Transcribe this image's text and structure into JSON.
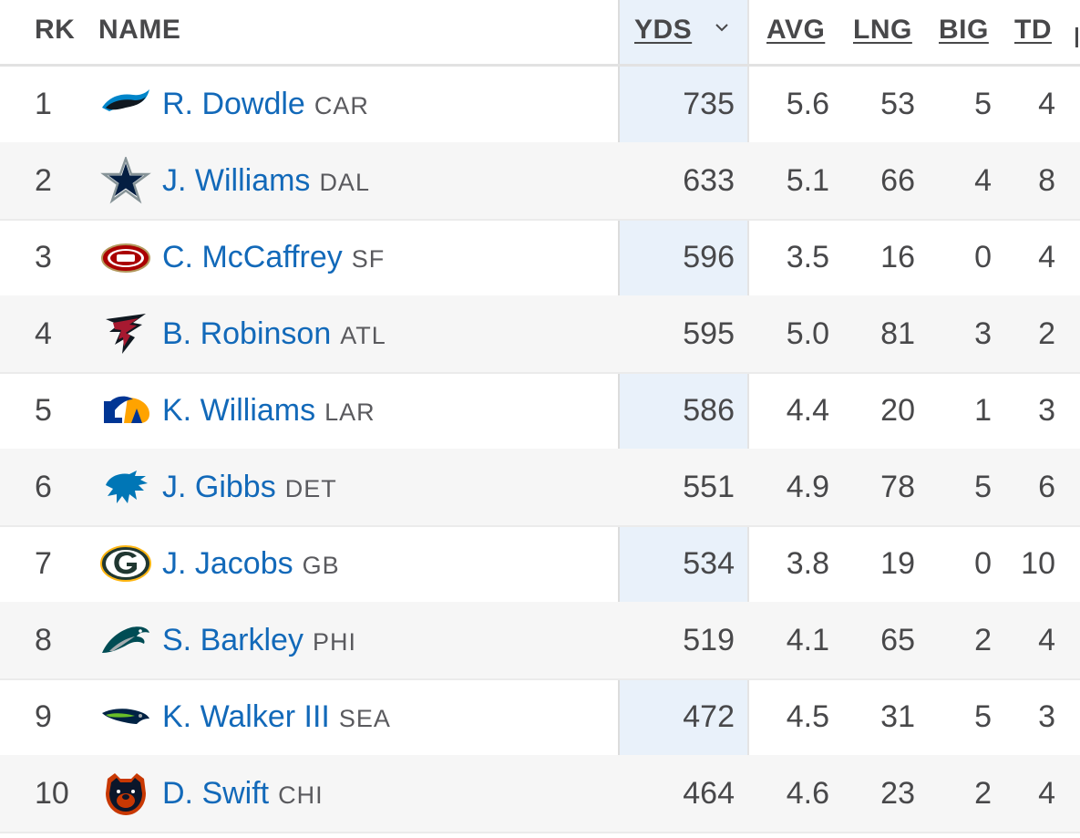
{
  "columns": {
    "rk": "RK",
    "name": "NAME",
    "yds": "YDS",
    "avg": "AVG",
    "lng": "LNG",
    "big": "BIG",
    "td": "TD"
  },
  "sort": {
    "column": "YDS",
    "direction": "descending",
    "icon": "chevron-down-icon"
  },
  "colors": {
    "player_link": "#1269b9",
    "sorted_column_bg": "#e9f1fa",
    "alt_row_bg": "#f6f6f6",
    "text": "#48484a"
  },
  "rows": [
    {
      "rk": "1",
      "name": "R. Dowdle",
      "team": "CAR",
      "logo": "panthers-logo-icon",
      "yds": "735",
      "avg": "5.6",
      "lng": "53",
      "big": "5",
      "td": "4"
    },
    {
      "rk": "2",
      "name": "J. Williams",
      "team": "DAL",
      "logo": "cowboys-logo-icon",
      "yds": "633",
      "avg": "5.1",
      "lng": "66",
      "big": "4",
      "td": "8"
    },
    {
      "rk": "3",
      "name": "C. McCaffrey",
      "team": "SF",
      "logo": "49ers-logo-icon",
      "yds": "596",
      "avg": "3.5",
      "lng": "16",
      "big": "0",
      "td": "4"
    },
    {
      "rk": "4",
      "name": "B. Robinson",
      "team": "ATL",
      "logo": "falcons-logo-icon",
      "yds": "595",
      "avg": "5.0",
      "lng": "81",
      "big": "3",
      "td": "2"
    },
    {
      "rk": "5",
      "name": "K. Williams",
      "team": "LAR",
      "logo": "rams-logo-icon",
      "yds": "586",
      "avg": "4.4",
      "lng": "20",
      "big": "1",
      "td": "3"
    },
    {
      "rk": "6",
      "name": "J. Gibbs",
      "team": "DET",
      "logo": "lions-logo-icon",
      "yds": "551",
      "avg": "4.9",
      "lng": "78",
      "big": "5",
      "td": "6"
    },
    {
      "rk": "7",
      "name": "J. Jacobs",
      "team": "GB",
      "logo": "packers-logo-icon",
      "yds": "534",
      "avg": "3.8",
      "lng": "19",
      "big": "0",
      "td": "10"
    },
    {
      "rk": "8",
      "name": "S. Barkley",
      "team": "PHI",
      "logo": "eagles-logo-icon",
      "yds": "519",
      "avg": "4.1",
      "lng": "65",
      "big": "2",
      "td": "4"
    },
    {
      "rk": "9",
      "name": "K. Walker III",
      "team": "SEA",
      "logo": "seahawks-logo-icon",
      "yds": "472",
      "avg": "4.5",
      "lng": "31",
      "big": "5",
      "td": "3"
    },
    {
      "rk": "10",
      "name": "D. Swift",
      "team": "CHI",
      "logo": "bears-logo-icon",
      "yds": "464",
      "avg": "4.6",
      "lng": "23",
      "big": "2",
      "td": "4"
    }
  ]
}
